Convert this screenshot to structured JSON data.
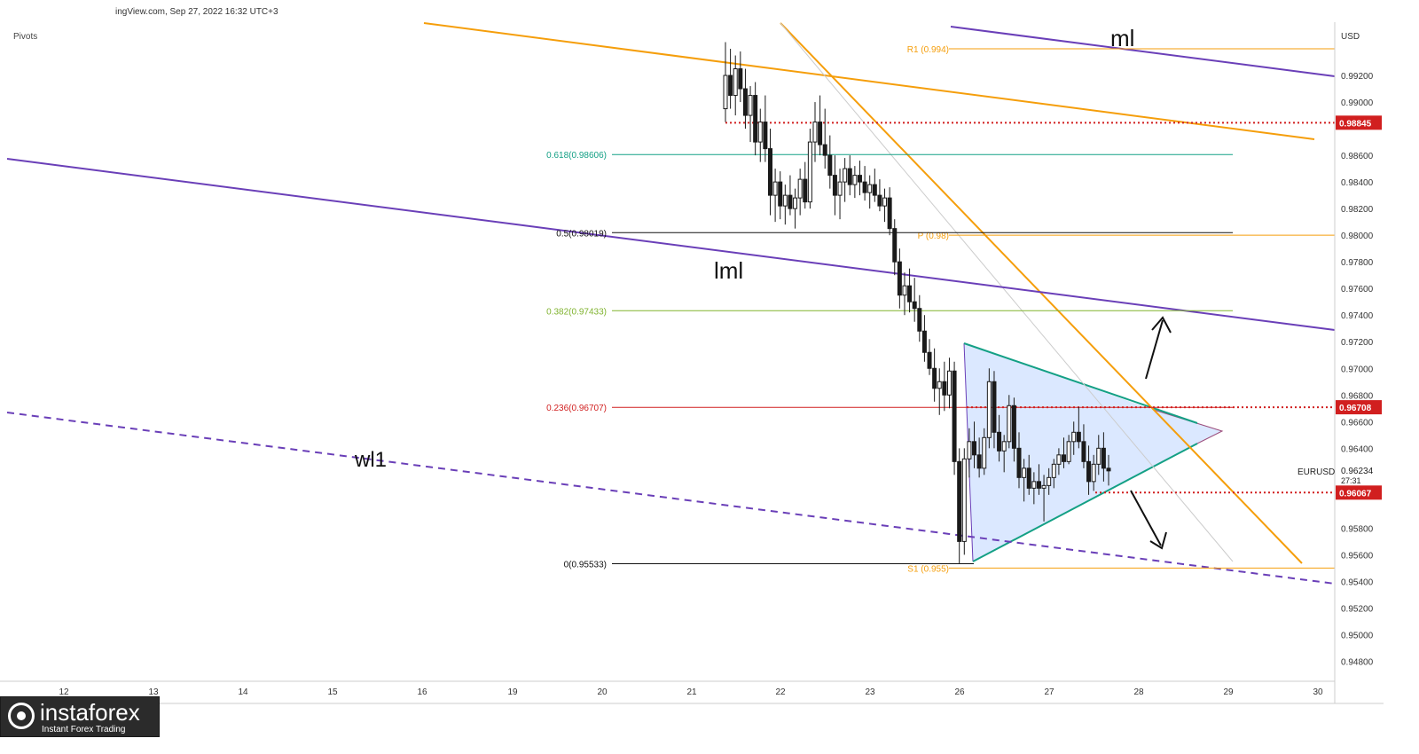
{
  "header": {
    "text": "ingView.com, Sep 27, 2022 16:32 UTC+3",
    "indicator": "Pivots"
  },
  "branding": {
    "name": "instaforex",
    "tagline": "Instant Forex Trading",
    "icon": "instaforex-logo-icon"
  },
  "colors": {
    "orange": "#f59e0b",
    "purple": "#6a3fb8",
    "teal": "#14a085",
    "black_line": "#111111",
    "green": "#80b32f",
    "red": "#d11f1f",
    "triangle_fill": "#c8dcff",
    "candle": "#1a1a1a",
    "axis_text": "#333333"
  },
  "chart_data": {
    "type": "candlestick",
    "symbol": "EURUSD",
    "currency": "USD",
    "ylim": [
      0.9465,
      0.996
    ],
    "x_ticks": [
      "12",
      "13",
      "14",
      "15",
      "16",
      "19",
      "20",
      "21",
      "22",
      "23",
      "26",
      "27",
      "28",
      "29",
      "30"
    ],
    "y_ticks": [
      0.992,
      0.99,
      0.986,
      0.984,
      0.982,
      0.98,
      0.978,
      0.976,
      0.974,
      0.972,
      0.97,
      0.968,
      0.966,
      0.964,
      0.958,
      0.956,
      0.954,
      0.952,
      0.95,
      0.948
    ],
    "price_badges": [
      {
        "value": "0.98845",
        "price": 0.98845
      },
      {
        "value": "0.96708",
        "price": 0.96708
      },
      {
        "value": "0.96067",
        "price": 0.96067
      }
    ],
    "current": {
      "symbol": "EURUSD",
      "value": "0.96234",
      "countdown": "27:31",
      "price": 0.96234
    },
    "fibonacci": [
      {
        "label": "0.618(0.98606)",
        "price": 0.98606,
        "color": "teal"
      },
      {
        "label": "0.5(0.98019)",
        "price": 0.98019,
        "color": "black_line"
      },
      {
        "label": "0.382(0.97433)",
        "price": 0.97433,
        "color": "green"
      },
      {
        "label": "0.236(0.96707)",
        "price": 0.96707,
        "color": "red"
      },
      {
        "label": "0(0.95533)",
        "price": 0.95533,
        "color": "black_line"
      }
    ],
    "pivots": [
      {
        "label": "R1 (0.994)",
        "price": 0.994
      },
      {
        "label": "P (0.98)",
        "price": 0.98
      },
      {
        "label": "S1 (0.955)",
        "price": 0.955
      }
    ],
    "annotations": [
      {
        "text": "ml"
      },
      {
        "text": "lml"
      },
      {
        "text": "wl1"
      }
    ],
    "candles_ohlc": [
      [
        0.9895,
        0.9945,
        0.9885,
        0.992
      ],
      [
        0.992,
        0.994,
        0.9895,
        0.9905
      ],
      [
        0.9905,
        0.9935,
        0.989,
        0.9925
      ],
      [
        0.9925,
        0.9938,
        0.99,
        0.991
      ],
      [
        0.991,
        0.9925,
        0.988,
        0.989
      ],
      [
        0.989,
        0.9912,
        0.987,
        0.9905
      ],
      [
        0.9905,
        0.9915,
        0.986,
        0.987
      ],
      [
        0.987,
        0.9895,
        0.9855,
        0.9885
      ],
      [
        0.9885,
        0.9905,
        0.9855,
        0.9865
      ],
      [
        0.9865,
        0.988,
        0.9815,
        0.983
      ],
      [
        0.983,
        0.985,
        0.981,
        0.984
      ],
      [
        0.984,
        0.9848,
        0.9812,
        0.9822
      ],
      [
        0.9822,
        0.9838,
        0.9808,
        0.983
      ],
      [
        0.983,
        0.9845,
        0.9815,
        0.982
      ],
      [
        0.982,
        0.9835,
        0.9805,
        0.9828
      ],
      [
        0.9828,
        0.985,
        0.9815,
        0.9842
      ],
      [
        0.9842,
        0.9855,
        0.982,
        0.9825
      ],
      [
        0.9825,
        0.988,
        0.982,
        0.987
      ],
      [
        0.987,
        0.99,
        0.9855,
        0.9885
      ],
      [
        0.9885,
        0.9905,
        0.986,
        0.9868
      ],
      [
        0.9868,
        0.9895,
        0.985,
        0.986
      ],
      [
        0.986,
        0.9875,
        0.9835,
        0.9845
      ],
      [
        0.9845,
        0.986,
        0.9815,
        0.983
      ],
      [
        0.983,
        0.985,
        0.9812,
        0.984
      ],
      [
        0.984,
        0.9858,
        0.9825,
        0.985
      ],
      [
        0.985,
        0.986,
        0.983,
        0.9838
      ],
      [
        0.9838,
        0.9852,
        0.9828,
        0.9845
      ],
      [
        0.9845,
        0.9856,
        0.983,
        0.984
      ],
      [
        0.984,
        0.9852,
        0.9826,
        0.9832
      ],
      [
        0.9832,
        0.9845,
        0.982,
        0.9838
      ],
      [
        0.9838,
        0.985,
        0.9825,
        0.983
      ],
      [
        0.983,
        0.9842,
        0.9818,
        0.9822
      ],
      [
        0.9822,
        0.9835,
        0.981,
        0.9828
      ],
      [
        0.9828,
        0.9836,
        0.98,
        0.9805
      ],
      [
        0.9805,
        0.9812,
        0.977,
        0.978
      ],
      [
        0.978,
        0.979,
        0.9745,
        0.9755
      ],
      [
        0.9755,
        0.9772,
        0.974,
        0.9762
      ],
      [
        0.9762,
        0.9775,
        0.9742,
        0.975
      ],
      [
        0.975,
        0.9768,
        0.9735,
        0.9745
      ],
      [
        0.9745,
        0.9755,
        0.972,
        0.9728
      ],
      [
        0.9728,
        0.974,
        0.9705,
        0.9712
      ],
      [
        0.9712,
        0.9722,
        0.9695,
        0.97
      ],
      [
        0.97,
        0.9715,
        0.9675,
        0.9685
      ],
      [
        0.9685,
        0.97,
        0.9665,
        0.969
      ],
      [
        0.969,
        0.9705,
        0.9668,
        0.968
      ],
      [
        0.968,
        0.9708,
        0.967,
        0.9698
      ],
      [
        0.9698,
        0.9705,
        0.962,
        0.963
      ],
      [
        0.963,
        0.964,
        0.9553,
        0.957
      ],
      [
        0.957,
        0.964,
        0.956,
        0.9632
      ],
      [
        0.9632,
        0.9655,
        0.9618,
        0.9645
      ],
      [
        0.9645,
        0.966,
        0.9625,
        0.9635
      ],
      [
        0.9635,
        0.9648,
        0.9618,
        0.9625
      ],
      [
        0.9625,
        0.9655,
        0.962,
        0.9648
      ],
      [
        0.9648,
        0.97,
        0.964,
        0.969
      ],
      [
        0.969,
        0.9698,
        0.964,
        0.9652
      ],
      [
        0.9652,
        0.9665,
        0.963,
        0.9638
      ],
      [
        0.9638,
        0.965,
        0.9622,
        0.9645
      ],
      [
        0.9645,
        0.968,
        0.964,
        0.9672
      ],
      [
        0.9672,
        0.9678,
        0.963,
        0.964
      ],
      [
        0.964,
        0.9652,
        0.961,
        0.9618
      ],
      [
        0.9618,
        0.9632,
        0.96,
        0.9625
      ],
      [
        0.9625,
        0.9635,
        0.9605,
        0.961
      ],
      [
        0.961,
        0.9622,
        0.9598,
        0.9615
      ],
      [
        0.9615,
        0.9628,
        0.9605,
        0.961
      ],
      [
        0.961,
        0.962,
        0.9585,
        0.9612
      ],
      [
        0.9612,
        0.9625,
        0.9605,
        0.9618
      ],
      [
        0.9618,
        0.9632,
        0.961,
        0.9628
      ],
      [
        0.9628,
        0.964,
        0.962,
        0.9635
      ],
      [
        0.9635,
        0.9648,
        0.9625,
        0.963
      ],
      [
        0.963,
        0.965,
        0.9628,
        0.9645
      ],
      [
        0.9645,
        0.966,
        0.9635,
        0.9652
      ],
      [
        0.9652,
        0.9671,
        0.964,
        0.9645
      ],
      [
        0.9645,
        0.9658,
        0.9625,
        0.963
      ],
      [
        0.963,
        0.9642,
        0.9605,
        0.9615
      ],
      [
        0.9615,
        0.9635,
        0.9608,
        0.9628
      ],
      [
        0.9628,
        0.965,
        0.962,
        0.964
      ],
      [
        0.964,
        0.9652,
        0.9615,
        0.9625
      ],
      [
        0.9625,
        0.9635,
        0.9612,
        0.9623
      ]
    ]
  }
}
